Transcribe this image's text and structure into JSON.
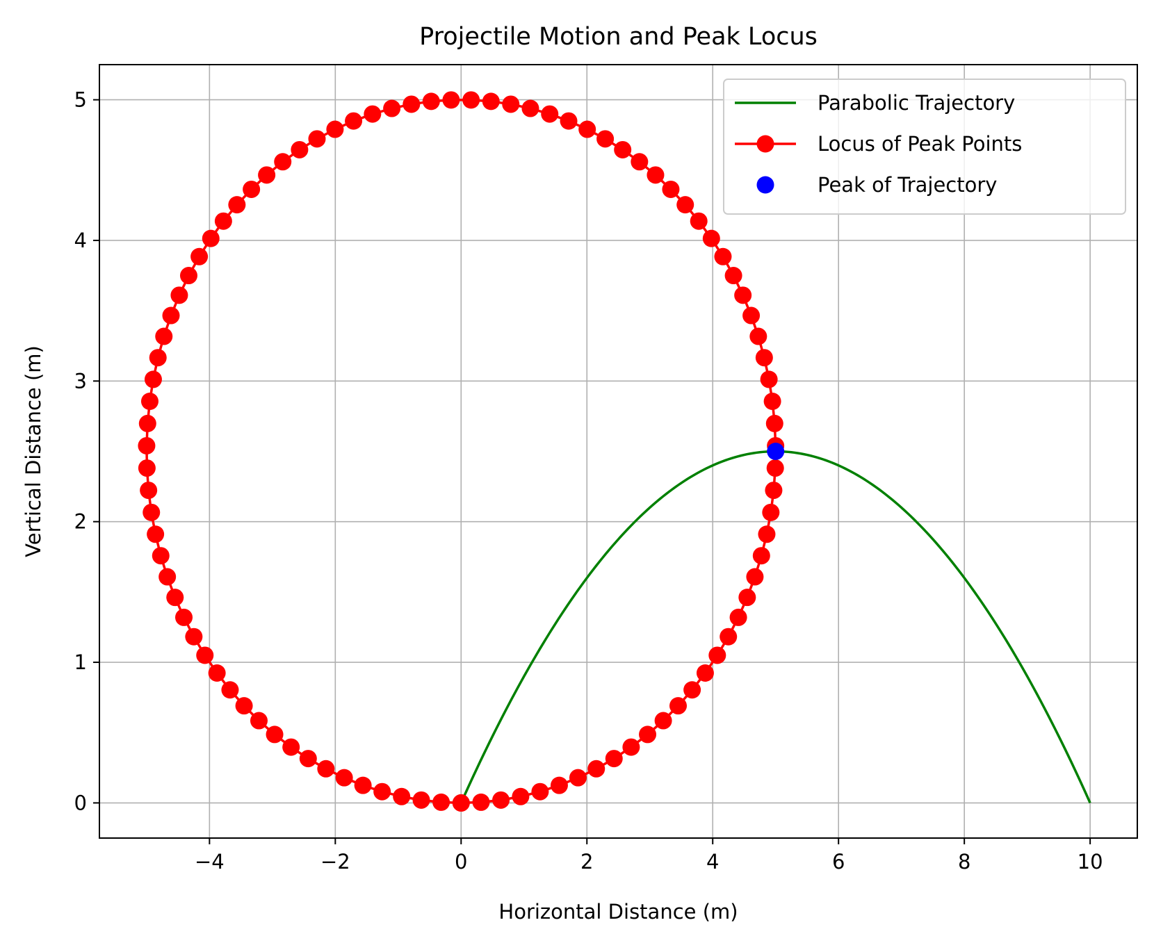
{
  "chart_data": {
    "type": "line",
    "title": "Projectile Motion and Peak Locus",
    "xlabel": "Horizontal Distance (m)",
    "ylabel": "Vertical Distance (m)",
    "xlim": [
      -5.75,
      10.75
    ],
    "ylim": [
      -0.25,
      5.25
    ],
    "x_ticks": [
      -4,
      -2,
      0,
      2,
      4,
      6,
      8,
      10
    ],
    "x_tick_labels": [
      "−4",
      "−2",
      "0",
      "2",
      "4",
      "6",
      "8",
      "10"
    ],
    "y_ticks": [
      0,
      1,
      2,
      3,
      4,
      5
    ],
    "y_tick_labels": [
      "0",
      "1",
      "2",
      "3",
      "4",
      "5"
    ],
    "grid": true,
    "legend_position": "top-right",
    "series": [
      {
        "name": "Parabolic Trajectory",
        "kind": "line",
        "color": "#008000",
        "equation": "y = x - 0.1*x^2",
        "x_range": [
          0,
          10
        ],
        "x": [
          0,
          1,
          2,
          3,
          4,
          5,
          6,
          7,
          8,
          9,
          10
        ],
        "y": [
          0,
          0.9,
          1.6,
          2.1,
          2.4,
          2.5,
          2.4,
          2.1,
          1.6,
          0.9,
          0
        ]
      },
      {
        "name": "Locus of Peak Points",
        "kind": "line-markers",
        "color": "#ff0000",
        "shape": "ellipse",
        "center": [
          0,
          2.5
        ],
        "semi_axes": [
          5,
          2.5
        ],
        "num_points": 100,
        "x_first_last": [
          0,
          0
        ],
        "y_first_last": [
          0,
          0
        ]
      },
      {
        "name": "Peak of Trajectory",
        "kind": "markers",
        "color": "#0000ff",
        "x": [
          5
        ],
        "y": [
          2.5
        ]
      }
    ]
  }
}
